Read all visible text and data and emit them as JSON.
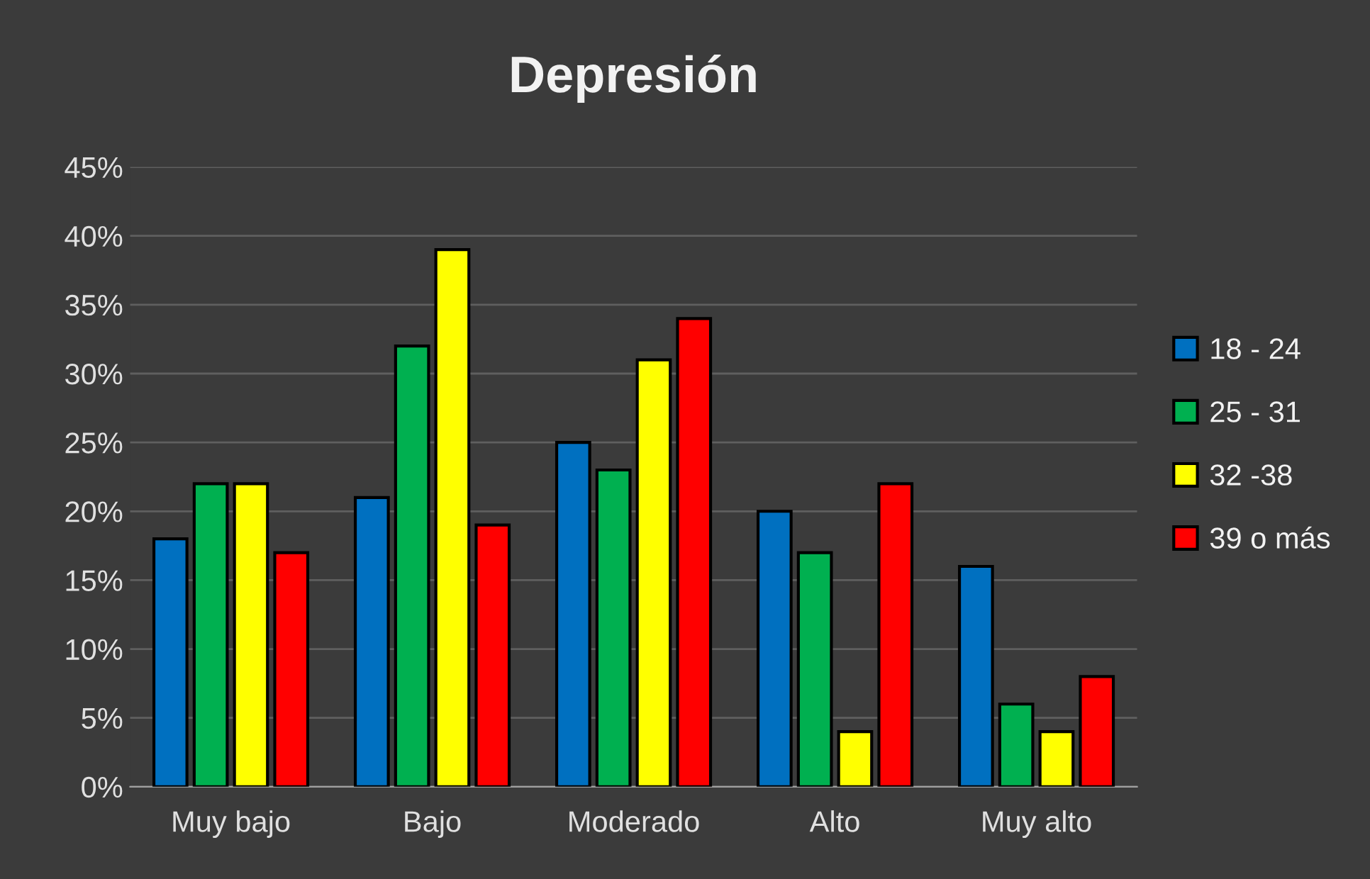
{
  "chart_data": {
    "type": "bar",
    "title": "Depresión",
    "categories": [
      "Muy bajo",
      "Bajo",
      "Moderado",
      "Alto",
      "Muy alto"
    ],
    "series": [
      {
        "name": "18 - 24",
        "color": "#0070c0",
        "values": [
          18,
          21,
          25,
          20,
          16
        ]
      },
      {
        "name": "25 - 31",
        "color": "#00b050",
        "values": [
          22,
          32,
          23,
          17,
          6
        ]
      },
      {
        "name": "32 -38",
        "color": "#ffff00",
        "values": [
          22,
          39,
          31,
          4,
          4
        ]
      },
      {
        "name": "39 o más",
        "color": "#ff0000",
        "values": [
          17,
          19,
          34,
          22,
          8
        ]
      }
    ],
    "ylim": [
      0,
      45
    ],
    "yticks": [
      {
        "value": 0,
        "label": "0%"
      },
      {
        "value": 5,
        "label": "5%"
      },
      {
        "value": 10,
        "label": "10%"
      },
      {
        "value": 15,
        "label": "15%"
      },
      {
        "value": 20,
        "label": "20%"
      },
      {
        "value": 25,
        "label": "25%"
      },
      {
        "value": 30,
        "label": "30%"
      },
      {
        "value": 35,
        "label": "35%"
      },
      {
        "value": 40,
        "label": "40%"
      },
      {
        "value": 45,
        "label": "45%"
      }
    ],
    "grid": "y",
    "legend": "right"
  }
}
